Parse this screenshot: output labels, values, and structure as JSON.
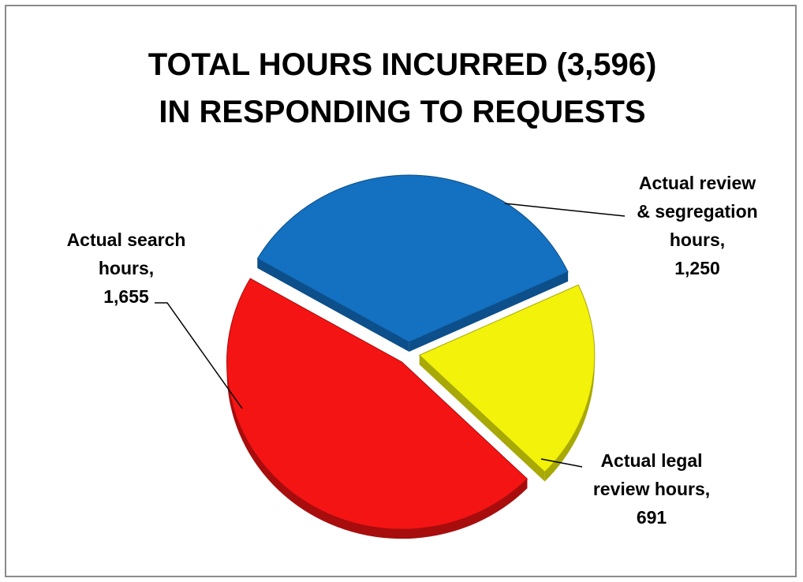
{
  "chart_data": {
    "type": "pie",
    "title": [
      "TOTAL HOURS INCURRED (3,596)",
      "IN RESPONDING TO REQUESTS"
    ],
    "slices": [
      {
        "label": [
          "Actual review",
          "& segregation",
          "hours,",
          "1,250"
        ],
        "value": 1250,
        "color": "#1470c0",
        "side_color": "#0d4f8a"
      },
      {
        "label": [
          "Actual legal",
          "review hours,",
          "691"
        ],
        "value": 691,
        "color": "#f2f20a",
        "side_color": "#a8a806"
      },
      {
        "label": [
          "Actual search",
          "hours,",
          "1,655"
        ],
        "value": 1655,
        "color": "#f51414",
        "side_color": "#a80d0d"
      }
    ],
    "legend": "none",
    "exploded": true,
    "style": "3d"
  }
}
